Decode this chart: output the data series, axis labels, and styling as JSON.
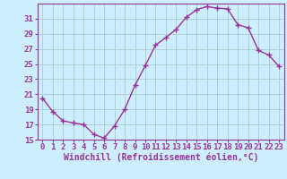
{
  "x": [
    0,
    1,
    2,
    3,
    4,
    5,
    6,
    7,
    8,
    9,
    10,
    11,
    12,
    13,
    14,
    15,
    16,
    17,
    18,
    19,
    20,
    21,
    22,
    23
  ],
  "y": [
    20.5,
    18.7,
    17.5,
    17.2,
    17.0,
    15.7,
    15.2,
    16.8,
    19.0,
    22.2,
    24.8,
    27.5,
    28.5,
    29.6,
    31.2,
    32.2,
    32.6,
    32.4,
    32.3,
    30.2,
    29.8,
    26.8,
    26.2,
    24.7
  ],
  "line_color": "#993399",
  "marker": "+",
  "marker_size": 4,
  "bg_color": "#cceeff",
  "grid_color": "#aacccc",
  "xlabel": "Windchill (Refroidissement éolien,°C)",
  "ylim": [
    15,
    33
  ],
  "yticks": [
    15,
    17,
    19,
    21,
    23,
    25,
    27,
    29,
    31
  ],
  "xticks": [
    0,
    1,
    2,
    3,
    4,
    5,
    6,
    7,
    8,
    9,
    10,
    11,
    12,
    13,
    14,
    15,
    16,
    17,
    18,
    19,
    20,
    21,
    22,
    23
  ],
  "xlabel_fontsize": 7,
  "tick_fontsize": 6.5,
  "line_width": 1.0,
  "label_color": "#993399"
}
